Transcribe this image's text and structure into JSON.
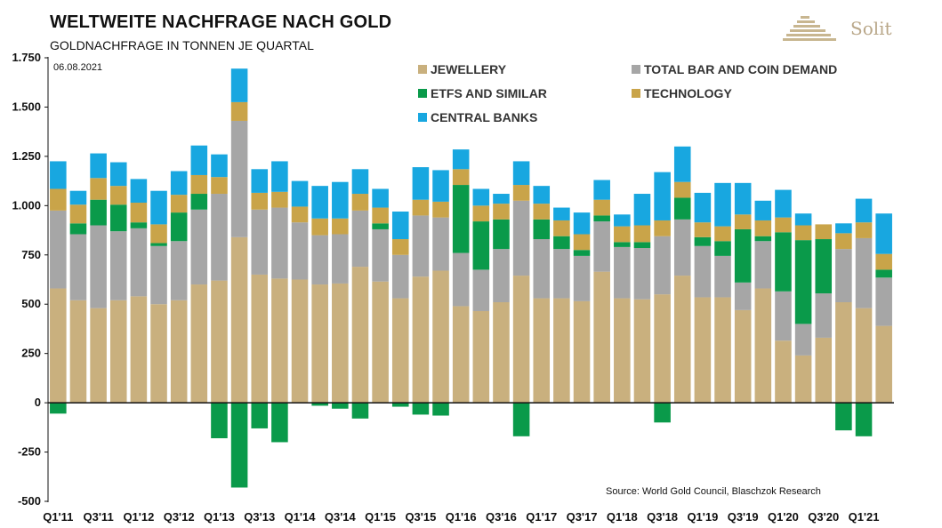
{
  "header": {
    "title": "WELTWEITE NACHFRAGE NACH GOLD",
    "subtitle": "GOLDNACHFRAGE IN TONNEN JE QUARTAL",
    "logo_text": "Solit"
  },
  "colors": {
    "jewellery": "#c9b07e",
    "bar_coin": "#a6a6a6",
    "etfs": "#0a9a4a",
    "technology": "#c9a449",
    "central_banks": "#18a7e0"
  },
  "chart_data": {
    "type": "bar",
    "stacked": true,
    "title": "WELTWEITE NACHFRAGE NACH GOLD",
    "subtitle": "GOLDNACHFRAGE IN TONNEN JE QUARTAL",
    "date": "06.08.2021",
    "source": "Source: World Gold Council, Blaschzok Research",
    "ylim": [
      -500,
      1750
    ],
    "yticks": [
      -500,
      -250,
      0,
      250,
      500,
      750,
      1000,
      1250,
      1500,
      1750
    ],
    "ytick_labels": [
      "-500",
      "-250",
      "0",
      "250",
      "500",
      "750",
      "1.000",
      "1.250",
      "1.500",
      "1.750"
    ],
    "x_tick_labels": [
      "Q1'11",
      "Q3'11",
      "Q1'12",
      "Q3'12",
      "Q1'13",
      "Q3'13",
      "Q1'14",
      "Q3'14",
      "Q1'15",
      "Q3'15",
      "Q1'16",
      "Q3'16",
      "Q1'17",
      "Q3'17",
      "Q1'18",
      "Q3'18",
      "Q1'19",
      "Q3'19",
      "Q1'20",
      "Q3'20",
      "Q1'21"
    ],
    "categories": [
      "Q1'11",
      "Q2'11",
      "Q3'11",
      "Q4'11",
      "Q1'12",
      "Q2'12",
      "Q3'12",
      "Q4'12",
      "Q1'13",
      "Q2'13",
      "Q3'13",
      "Q4'13",
      "Q1'14",
      "Q2'14",
      "Q3'14",
      "Q4'14",
      "Q1'15",
      "Q2'15",
      "Q3'15",
      "Q4'15",
      "Q1'16",
      "Q2'16",
      "Q3'16",
      "Q4'16",
      "Q1'17",
      "Q2'17",
      "Q3'17",
      "Q4'17",
      "Q1'18",
      "Q2'18",
      "Q3'18",
      "Q4'18",
      "Q1'19",
      "Q2'19",
      "Q3'19",
      "Q4'19",
      "Q1'20",
      "Q2'20",
      "Q3'20",
      "Q4'20",
      "Q1'21",
      "Q2'21"
    ],
    "legend": [
      {
        "key": "jewellery",
        "label": "JEWELLERY"
      },
      {
        "key": "bar_coin",
        "label": "TOTAL BAR AND COIN DEMAND"
      },
      {
        "key": "etfs",
        "label": "ETFS AND SIMILAR"
      },
      {
        "key": "technology",
        "label": "TECHNOLOGY"
      },
      {
        "key": "central_banks",
        "label": "CENTRAL BANKS"
      }
    ],
    "series": [
      {
        "key": "jewellery",
        "name": "JEWELLERY",
        "values": [
          580,
          520,
          480,
          520,
          540,
          500,
          520,
          600,
          620,
          840,
          650,
          630,
          625,
          600,
          605,
          690,
          615,
          530,
          640,
          670,
          490,
          465,
          510,
          645,
          530,
          530,
          515,
          665,
          530,
          525,
          550,
          645,
          535,
          535,
          470,
          580,
          315,
          240,
          330,
          510,
          480,
          390
        ]
      },
      {
        "key": "bar_coin",
        "name": "TOTAL BAR AND COIN DEMAND",
        "values": [
          395,
          335,
          420,
          350,
          345,
          295,
          300,
          380,
          440,
          590,
          330,
          360,
          290,
          250,
          250,
          285,
          265,
          220,
          310,
          270,
          270,
          210,
          270,
          380,
          300,
          250,
          230,
          255,
          260,
          260,
          295,
          285,
          260,
          210,
          140,
          240,
          250,
          160,
          225,
          270,
          355,
          245
        ]
      },
      {
        "key": "etfs",
        "name": "ETFS AND SIMILAR",
        "values": [
          -55,
          55,
          130,
          135,
          30,
          15,
          145,
          80,
          -180,
          -430,
          -130,
          -200,
          0,
          -15,
          -30,
          -80,
          30,
          -20,
          -60,
          -65,
          345,
          245,
          150,
          -170,
          100,
          65,
          30,
          30,
          25,
          30,
          -100,
          110,
          45,
          75,
          270,
          25,
          300,
          425,
          275,
          -140,
          -170,
          40
        ]
      },
      {
        "key": "technology",
        "name": "TECHNOLOGY",
        "values": [
          110,
          95,
          110,
          95,
          100,
          95,
          90,
          95,
          85,
          95,
          85,
          80,
          80,
          85,
          80,
          85,
          80,
          80,
          80,
          80,
          80,
          80,
          80,
          80,
          80,
          80,
          80,
          80,
          80,
          85,
          80,
          80,
          75,
          75,
          75,
          80,
          75,
          75,
          75,
          80,
          80,
          80
        ]
      },
      {
        "key": "central_banks",
        "name": "CENTRAL BANKS",
        "values": [
          140,
          70,
          125,
          120,
          120,
          170,
          120,
          150,
          115,
          170,
          120,
          155,
          130,
          165,
          185,
          125,
          95,
          140,
          165,
          160,
          100,
          85,
          50,
          120,
          90,
          65,
          110,
          100,
          60,
          160,
          245,
          180,
          150,
          220,
          160,
          100,
          140,
          60,
          0,
          50,
          120,
          205
        ]
      }
    ]
  }
}
